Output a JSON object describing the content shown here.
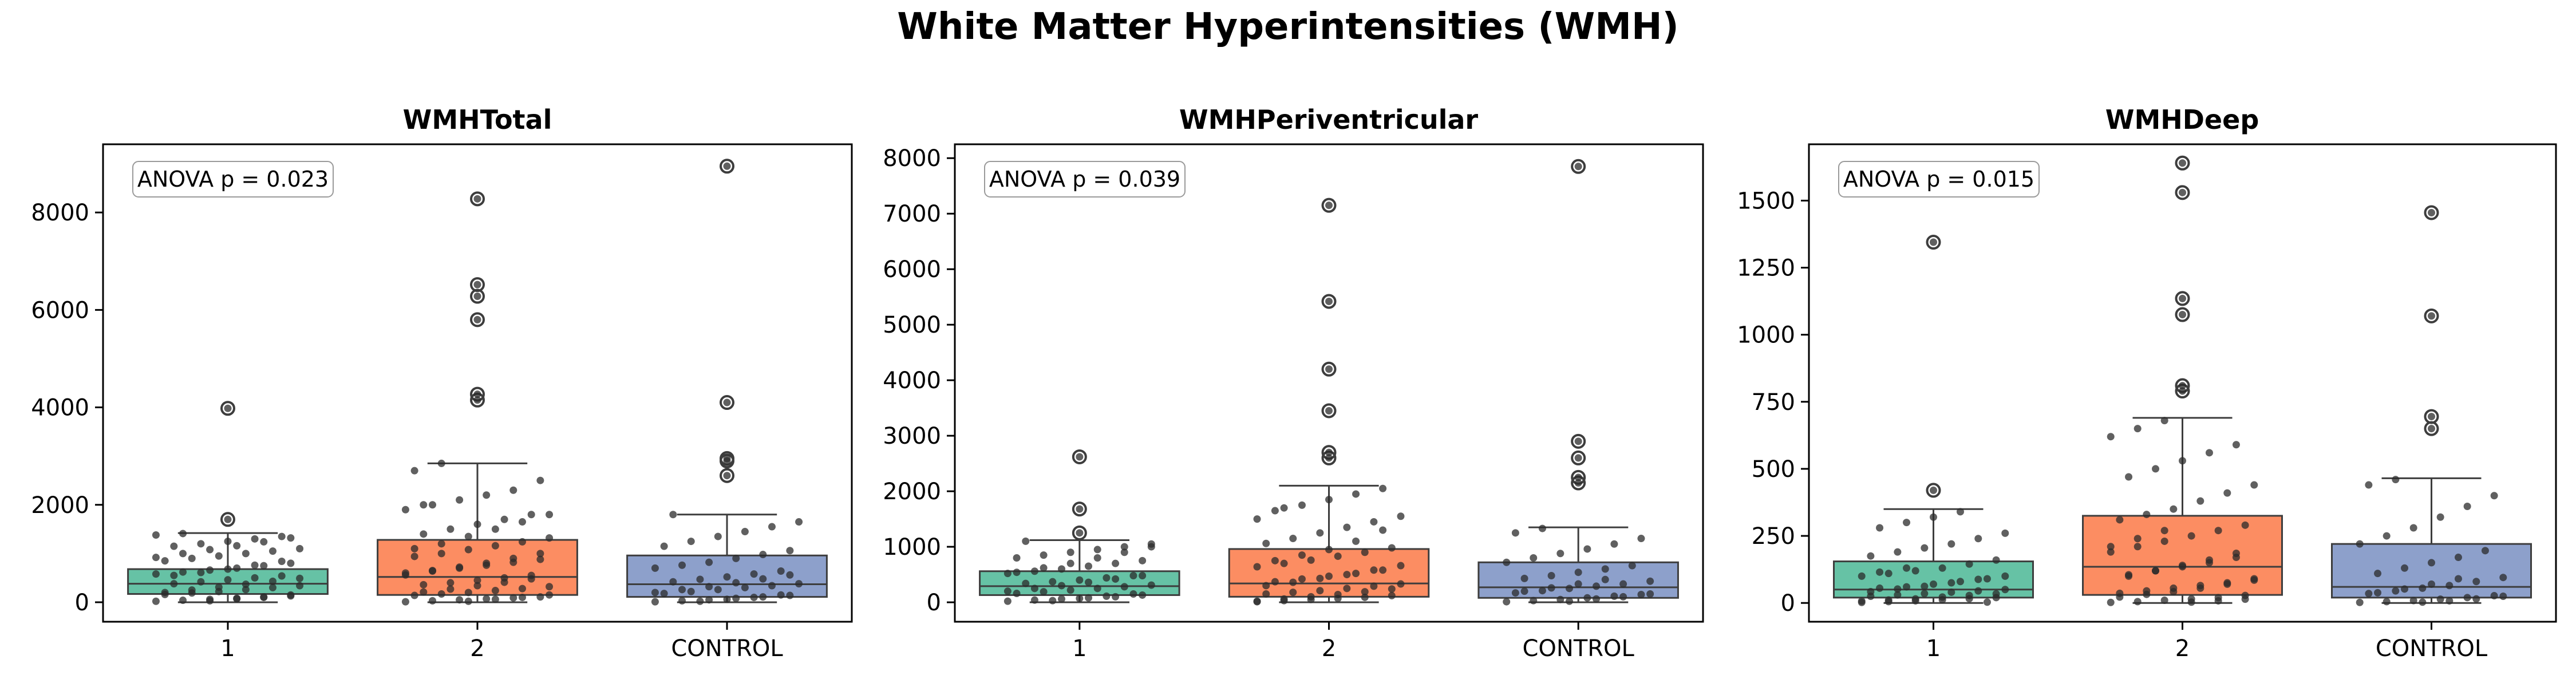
{
  "figure_title": "White Matter Hyperintensities (WMH)",
  "colors": {
    "groups": [
      "#66c2a5",
      "#fc8d62",
      "#8da0cb"
    ],
    "box_edge": "#3d3d3d",
    "points": "#2b2b2b",
    "outlier_marker": "#3d3d3d"
  },
  "chart_data": [
    {
      "type": "box",
      "title": "WMHTotal",
      "annotation": "ANOVA p = 0.023",
      "xlabel": "",
      "ylabel": "",
      "ylim": [
        -400,
        9400
      ],
      "yticks": [
        0,
        2000,
        4000,
        6000,
        8000
      ],
      "categories": [
        "1",
        "2",
        "CONTROL"
      ],
      "legend": "none",
      "grid": false,
      "boxes": [
        {
          "q1": 170,
          "median": 380,
          "q3": 680,
          "whisker_low": 0,
          "whisker_high": 1420,
          "outliers": [
            1700,
            3980
          ]
        },
        {
          "q1": 150,
          "median": 520,
          "q3": 1280,
          "whisker_low": 0,
          "whisker_high": 2850,
          "outliers": [
            4150,
            4270,
            5800,
            6280,
            6520,
            8280
          ]
        },
        {
          "q1": 110,
          "median": 370,
          "q3": 960,
          "whisker_low": 0,
          "whisker_high": 1800,
          "outliers": [
            2600,
            2900,
            2950,
            4100,
            8950
          ]
        }
      ],
      "points": [
        [
          20,
          40,
          60,
          80,
          100,
          130,
          160,
          190,
          220,
          260,
          300,
          340,
          380,
          420,
          460,
          500,
          540,
          580,
          620,
          660,
          700,
          750,
          800,
          850,
          900,
          950,
          1000,
          1050,
          1100,
          1150,
          1200,
          1250,
          1300,
          1350,
          1380,
          1410,
          30,
          70,
          110,
          150,
          200,
          250,
          310,
          370,
          430,
          490,
          550,
          610,
          680,
          760,
          840,
          920,
          1000,
          1080,
          1160,
          1240,
          1320,
          1700,
          3980
        ],
        [
          10,
          30,
          50,
          70,
          90,
          110,
          140,
          170,
          200,
          240,
          280,
          320,
          360,
          400,
          450,
          500,
          550,
          600,
          650,
          700,
          760,
          820,
          880,
          940,
          1000,
          1080,
          1160,
          1240,
          1320,
          1400,
          1500,
          1600,
          1700,
          1800,
          1900,
          2000,
          2100,
          2200,
          2300,
          2500,
          2700,
          2850,
          20,
          60,
          100,
          150,
          210,
          270,
          340,
          410,
          480,
          560,
          640,
          720,
          800,
          900,
          1000,
          1100,
          1200,
          1350,
          1500,
          1650,
          1800,
          2000,
          4150,
          4270,
          5800,
          6280,
          6520,
          8280
        ],
        [
          10,
          30,
          50,
          80,
          110,
          140,
          180,
          220,
          260,
          300,
          340,
          380,
          420,
          470,
          520,
          580,
          640,
          700,
          760,
          820,
          900,
          980,
          1060,
          1150,
          1250,
          1350,
          1450,
          1550,
          1650,
          1800,
          20,
          60,
          100,
          150,
          200,
          260,
          320,
          400,
          480,
          560,
          2600,
          2900,
          2950,
          4100,
          8950
        ]
      ]
    },
    {
      "type": "box",
      "title": "WMHPeriventricular",
      "annotation": "ANOVA p = 0.039",
      "xlabel": "",
      "ylabel": "",
      "ylim": [
        -350,
        8250
      ],
      "yticks": [
        0,
        1000,
        2000,
        3000,
        4000,
        5000,
        6000,
        7000,
        8000
      ],
      "categories": [
        "1",
        "2",
        "CONTROL"
      ],
      "legend": "none",
      "grid": false,
      "boxes": [
        {
          "q1": 130,
          "median": 290,
          "q3": 560,
          "whisker_low": 0,
          "whisker_high": 1120,
          "outliers": [
            1250,
            1680,
            2620
          ]
        },
        {
          "q1": 100,
          "median": 340,
          "q3": 960,
          "whisker_low": 0,
          "whisker_high": 2100,
          "outliers": [
            2600,
            2700,
            3450,
            4200,
            5420,
            7150
          ]
        },
        {
          "q1": 80,
          "median": 270,
          "q3": 720,
          "whisker_low": 0,
          "whisker_high": 1350,
          "outliers": [
            2150,
            2250,
            2600,
            2900,
            7850
          ]
        }
      ],
      "points": [
        [
          20,
          40,
          60,
          80,
          100,
          130,
          160,
          190,
          220,
          250,
          280,
          310,
          340,
          370,
          400,
          440,
          480,
          520,
          560,
          600,
          650,
          700,
          750,
          800,
          850,
          900,
          950,
          1000,
          1050,
          1100,
          30,
          70,
          110,
          150,
          200,
          250,
          300,
          360,
          420,
          480,
          540,
          620,
          700,
          800,
          900,
          1000,
          1250,
          1680,
          2620
        ],
        [
          10,
          30,
          50,
          70,
          90,
          120,
          150,
          180,
          210,
          250,
          290,
          330,
          370,
          420,
          470,
          520,
          580,
          640,
          700,
          760,
          830,
          900,
          980,
          1060,
          1150,
          1250,
          1350,
          1450,
          1550,
          1650,
          1750,
          1850,
          1950,
          2050,
          20,
          60,
          100,
          140,
          190,
          240,
          300,
          360,
          430,
          500,
          580,
          660,
          750,
          850,
          950,
          1100,
          1300,
          1500,
          1700,
          2600,
          2700,
          3450,
          4200,
          5420,
          7150
        ],
        [
          10,
          30,
          50,
          80,
          110,
          140,
          170,
          210,
          250,
          290,
          330,
          380,
          430,
          480,
          540,
          600,
          660,
          720,
          800,
          880,
          960,
          1050,
          1150,
          1250,
          1330,
          20,
          60,
          100,
          150,
          200,
          260,
          330,
          410,
          2150,
          2250,
          2600,
          2900,
          7850
        ]
      ]
    },
    {
      "type": "box",
      "title": "WMHDeep",
      "annotation": "ANOVA p = 0.015",
      "xlabel": "",
      "ylabel": "",
      "ylim": [
        -70,
        1710
      ],
      "yticks": [
        0,
        250,
        500,
        750,
        1000,
        1250,
        1500
      ],
      "categories": [
        "1",
        "2",
        "CONTROL"
      ],
      "legend": "none",
      "grid": false,
      "boxes": [
        {
          "q1": 20,
          "median": 50,
          "q3": 155,
          "whisker_low": 0,
          "whisker_high": 350,
          "outliers": [
            420,
            1345
          ]
        },
        {
          "q1": 30,
          "median": 135,
          "q3": 325,
          "whisker_low": 0,
          "whisker_high": 690,
          "outliers": [
            790,
            810,
            1075,
            1135,
            1530,
            1640
          ]
        },
        {
          "q1": 20,
          "median": 60,
          "q3": 220,
          "whisker_low": 0,
          "whisker_high": 465,
          "outliers": [
            650,
            695,
            1070,
            1455
          ]
        }
      ],
      "points": [
        [
          2,
          5,
          8,
          12,
          16,
          20,
          25,
          30,
          35,
          40,
          45,
          50,
          55,
          60,
          70,
          80,
          90,
          100,
          110,
          120,
          130,
          145,
          160,
          175,
          190,
          205,
          220,
          240,
          260,
          280,
          300,
          320,
          340,
          3,
          7,
          11,
          15,
          22,
          28,
          34,
          42,
          52,
          62,
          75,
          88,
          100,
          115,
          130,
          420,
          1345
        ],
        [
          2,
          5,
          10,
          15,
          20,
          28,
          36,
          45,
          55,
          65,
          75,
          90,
          105,
          120,
          135,
          150,
          170,
          190,
          210,
          230,
          250,
          270,
          290,
          310,
          330,
          350,
          380,
          410,
          440,
          470,
          500,
          530,
          560,
          590,
          620,
          650,
          680,
          3,
          8,
          14,
          22,
          32,
          42,
          55,
          70,
          85,
          100,
          120,
          140,
          160,
          185,
          210,
          240,
          270,
          790,
          810,
          1075,
          1135,
          1530,
          1640
        ],
        [
          2,
          5,
          9,
          14,
          20,
          27,
          35,
          45,
          55,
          65,
          80,
          95,
          110,
          130,
          150,
          170,
          195,
          220,
          250,
          280,
          320,
          360,
          400,
          440,
          460,
          3,
          8,
          15,
          25,
          38,
          52,
          70,
          90,
          650,
          695,
          1070,
          1455
        ]
      ]
    }
  ]
}
